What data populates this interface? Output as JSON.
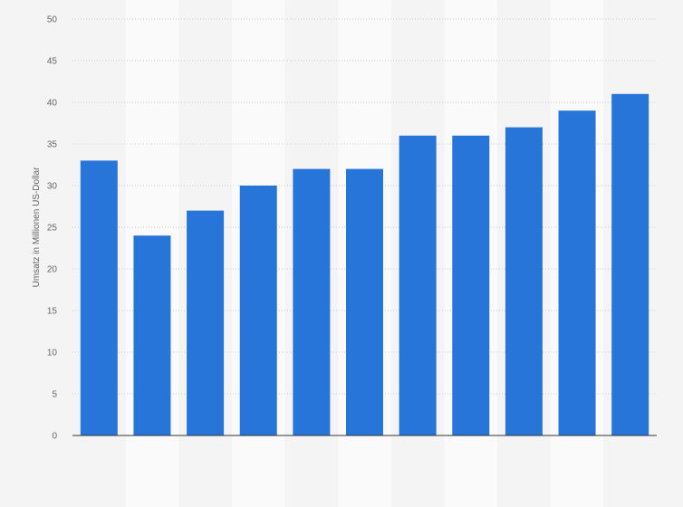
{
  "chart_data": {
    "type": "bar",
    "title": "",
    "xlabel": "",
    "ylabel": "Umsatz in Millionen US-Dollar",
    "ylim": [
      0,
      50
    ],
    "yticks": [
      0,
      5,
      10,
      15,
      20,
      25,
      30,
      35,
      40,
      45,
      50
    ],
    "categories": [
      "",
      "",
      "",
      "",
      "",
      "",
      "",
      "",
      "",
      "",
      ""
    ],
    "values": [
      33,
      24,
      27,
      30,
      32,
      32,
      36,
      36,
      37,
      39,
      41
    ],
    "grid": true,
    "colors": {
      "bar": "#2775d9",
      "background": "#f4f4f4",
      "band": "#fafafa",
      "grid": "#cccccc",
      "axis": "#333333"
    }
  }
}
